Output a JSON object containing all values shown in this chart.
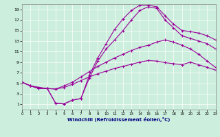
{
  "background_color": "#cceedd",
  "grid_color": "#ffffff",
  "line_color": "#990099",
  "xlim": [
    0,
    23
  ],
  "ylim": [
    0,
    20
  ],
  "xticks": [
    0,
    1,
    2,
    3,
    4,
    5,
    6,
    7,
    8,
    9,
    10,
    11,
    12,
    13,
    14,
    15,
    16,
    17,
    18,
    19,
    20,
    21,
    22,
    23
  ],
  "yticks": [
    1,
    3,
    5,
    7,
    9,
    11,
    13,
    15,
    17,
    19
  ],
  "xlabel": "Windchill (Refroidissement éolien,°C)",
  "curve1_x": [
    0,
    1,
    2,
    3,
    4,
    5,
    6,
    7,
    8,
    9,
    10,
    11,
    12,
    13,
    14,
    15,
    16,
    17,
    18,
    19,
    20,
    21,
    22,
    23
  ],
  "curve1_y": [
    5.2,
    4.5,
    4.2,
    4.0,
    3.9,
    4.2,
    4.8,
    5.5,
    6.2,
    6.8,
    7.3,
    7.8,
    8.2,
    8.6,
    9.0,
    9.3,
    9.2,
    8.9,
    8.7,
    8.5,
    9.0,
    8.5,
    8.0,
    7.5
  ],
  "curve2_x": [
    0,
    1,
    2,
    3,
    4,
    5,
    6,
    7,
    8,
    9,
    10,
    11,
    12,
    13,
    14,
    15,
    16,
    17,
    18,
    19,
    20,
    21,
    22,
    23
  ],
  "curve2_y": [
    5.2,
    4.5,
    4.2,
    4.0,
    3.9,
    4.5,
    5.2,
    6.2,
    7.2,
    8.2,
    9.0,
    9.8,
    10.5,
    11.2,
    11.8,
    12.2,
    12.8,
    13.2,
    12.8,
    12.2,
    11.5,
    10.5,
    9.2,
    8.0
  ],
  "curve3_x": [
    0,
    1,
    2,
    3,
    4,
    5,
    6,
    7,
    8,
    9,
    10,
    11,
    12,
    13,
    14,
    15,
    16,
    17,
    18,
    19,
    20,
    21,
    22,
    23
  ],
  "curve3_y": [
    5.2,
    4.5,
    4.0,
    4.0,
    1.2,
    1.1,
    1.8,
    2.1,
    6.0,
    9.2,
    11.5,
    13.2,
    15.0,
    17.0,
    18.8,
    19.5,
    19.2,
    17.0,
    15.5,
    14.0,
    13.5,
    13.0,
    12.5,
    11.5
  ],
  "curve4_x": [
    0,
    1,
    2,
    3,
    4,
    5,
    6,
    7,
    8,
    9,
    10,
    11,
    12,
    13,
    14,
    15,
    16,
    17,
    18,
    19,
    20,
    21,
    22,
    23
  ],
  "curve4_y": [
    5.2,
    4.5,
    4.0,
    4.0,
    1.2,
    1.1,
    1.8,
    2.1,
    6.5,
    9.8,
    12.5,
    15.2,
    17.2,
    18.8,
    19.8,
    19.8,
    19.5,
    17.8,
    16.2,
    15.0,
    14.8,
    14.5,
    14.0,
    13.2
  ]
}
